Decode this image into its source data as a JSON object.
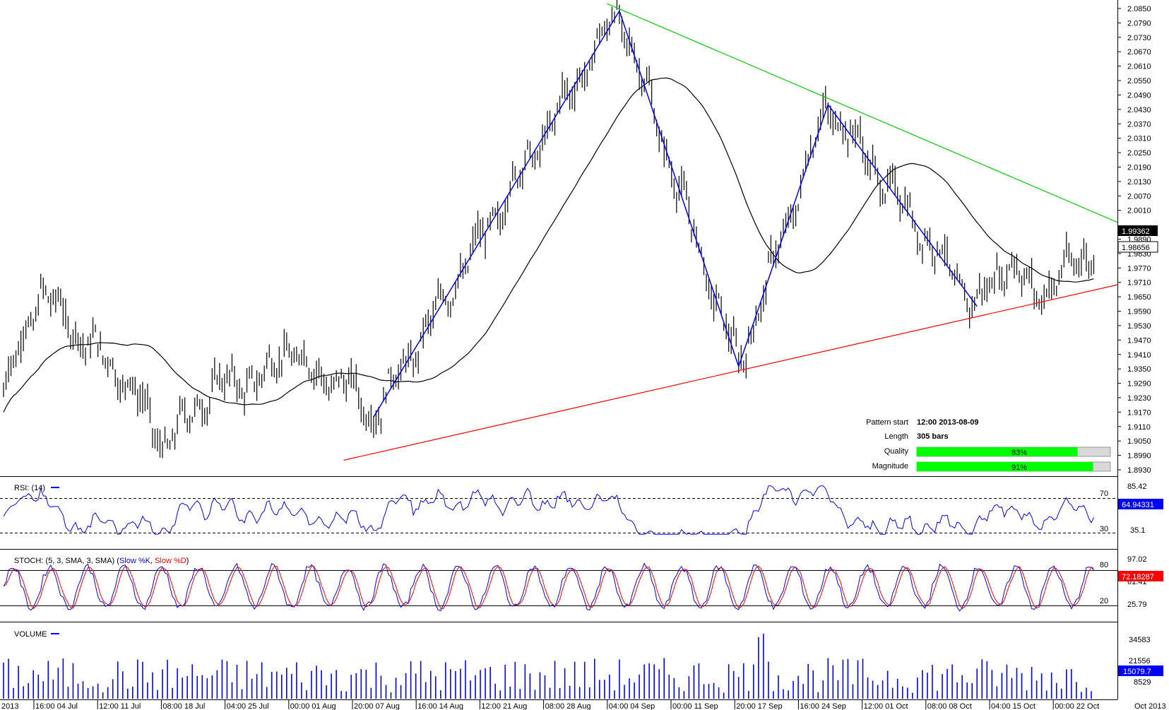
{
  "price_axis": {
    "ticks": [
      "2.0850",
      "2.0790",
      "2.0730",
      "2.0670",
      "2.0610",
      "2.0550",
      "2.0490",
      "2.0430",
      "2.0370",
      "2.0310",
      "2.0250",
      "2.0190",
      "2.0130",
      "2.0070",
      "2.0010",
      "1.9890",
      "1.9830",
      "1.9770",
      "1.9710",
      "1.9650",
      "1.9590",
      "1.9530",
      "1.9470",
      "1.9410",
      "1.9350",
      "1.9290",
      "1.9230",
      "1.9170",
      "1.9110",
      "1.9050",
      "1.8990",
      "1.8930"
    ],
    "badge_dark": "1.99362",
    "badge_light": "1.98656"
  },
  "time_axis": {
    "labels": [
      "2013",
      "16:00 04 Jul",
      "12:00 11 Jul",
      "08:00 18 Jul",
      "04:00 25 Jul",
      "00:00 01 Aug",
      "20:00 07 Aug",
      "16:00 14 Aug",
      "12:00 21 Aug",
      "08:00 28 Aug",
      "04:00 04 Sep",
      "00:00 11 Sep",
      "20:00 17 Sep",
      "16:00 24 Sep",
      "12:00 01 Oct",
      "08:00 08 Oct",
      "04:00 15 Oct",
      "00:00 22 Oct",
      "Oct 2013"
    ]
  },
  "pattern_info": {
    "start_label": "Pattern start",
    "start_value": "12:00 2013-08-09",
    "length_label": "Length",
    "length_value": "305 bars",
    "quality_label": "Quality",
    "quality_value": "83%",
    "quality_fraction": 0.83,
    "magnitude_label": "Magnitude",
    "magnitude_value": "91%",
    "magnitude_fraction": 0.91
  },
  "rsi": {
    "title": "RSI: (14)",
    "levels": [
      "70",
      "30"
    ],
    "axis_ticks": [
      "85.42",
      "35.1"
    ],
    "badge": "64.94331"
  },
  "stoch": {
    "title_prefix": "STOCH: (5, 3, SMA, 3, SMA) (",
    "k_label": "Slow %K",
    "sep": ", ",
    "d_label": "Slow %D",
    "title_suffix": ")",
    "levels": [
      "80",
      "20"
    ],
    "axis_ticks": [
      "97.02",
      "61.41",
      "25.79"
    ],
    "badge": "72.18287"
  },
  "volume": {
    "title": "VOLUME",
    "axis_ticks": [
      "34583",
      "21556",
      "8529"
    ],
    "badge": "15079.7"
  },
  "colors": {
    "candles": "#000000",
    "zigzag": "#0000ff",
    "resistance": "#00cc00",
    "support": "#ff0000",
    "moving_average": "#000000",
    "rsi_line": "#0000ff",
    "stoch_k": "#0000ff",
    "stoch_d": "#ff0000",
    "volume_bars": "#0000ff",
    "bar_green": "#00ff00"
  },
  "chart_data": {
    "type": "line",
    "title": "",
    "price_range": [
      1.893,
      2.085
    ],
    "zigzag_pivots": [
      {
        "time": "2013-08-09 12:00",
        "price": 1.915
      },
      {
        "time": "2013-09-03",
        "price": 2.084
      },
      {
        "time": "2013-09-17",
        "price": 1.936
      },
      {
        "time": "2013-09-27",
        "price": 2.045
      },
      {
        "time": "2013-10-14",
        "price": 1.961
      }
    ],
    "resistance_line": [
      {
        "time": "2013-09-01",
        "price": 2.087
      },
      {
        "time": "2013-10-26",
        "price": 1.996
      }
    ],
    "support_line": [
      {
        "time": "2013-08-09",
        "price": 1.897
      },
      {
        "time": "2013-10-26",
        "price": 1.97
      }
    ],
    "last_price": 1.98656,
    "moving_average_last": 1.99362,
    "rsi_last": 64.94331,
    "stoch_last": 72.18287,
    "volume_last": 15079.7
  }
}
